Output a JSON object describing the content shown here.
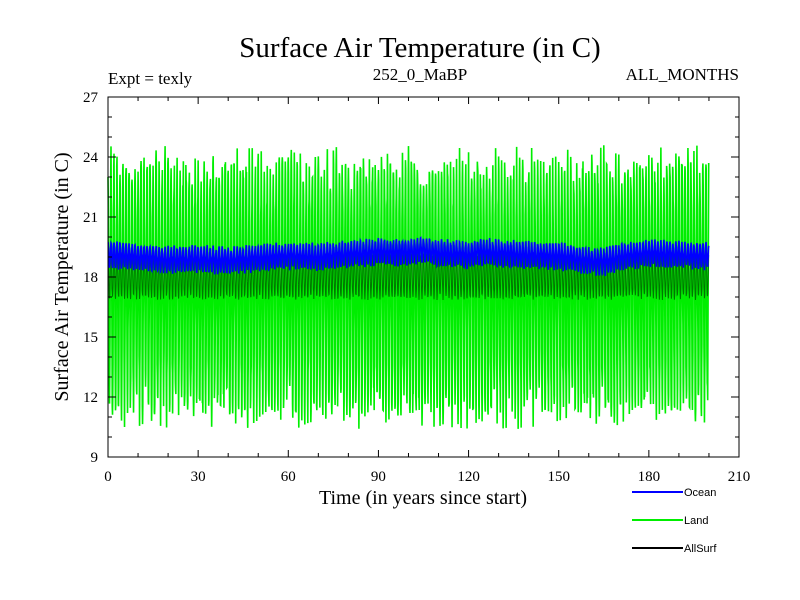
{
  "chart_data": {
    "type": "line",
    "title": "Surface Air Temperature (in C)",
    "expt_label": "Expt = texly",
    "run_label": "252_0_MaBP",
    "months_label": "ALL_MONTHS",
    "xlabel": "Time (in years since start)",
    "ylabel": "Surface Air Temperature (in C)",
    "xlim": [
      0,
      210
    ],
    "ylim": [
      9,
      27
    ],
    "xticks": [
      0,
      30,
      60,
      90,
      120,
      150,
      180,
      210
    ],
    "yticks": [
      9,
      12,
      15,
      18,
      21,
      24,
      27
    ],
    "grid": false,
    "legend_position": "bottom-right",
    "data_x_range": [
      0,
      199.9
    ],
    "samples_per_year": 12,
    "series": [
      {
        "name": "Ocean",
        "color": "#0000ff",
        "seasonal_min": 18.4,
        "seasonal_max": 19.6,
        "slow_variation": [
          [
            0,
            0.1
          ],
          [
            10,
            0.0
          ],
          [
            20,
            -0.15
          ],
          [
            30,
            -0.1
          ],
          [
            40,
            -0.2
          ],
          [
            50,
            -0.05
          ],
          [
            60,
            0.05
          ],
          [
            70,
            0.0
          ],
          [
            80,
            0.15
          ],
          [
            90,
            0.25
          ],
          [
            100,
            0.2
          ],
          [
            105,
            0.35
          ],
          [
            110,
            0.2
          ],
          [
            120,
            0.1
          ],
          [
            125,
            0.25
          ],
          [
            130,
            0.2
          ],
          [
            140,
            0.1
          ],
          [
            150,
            0.05
          ],
          [
            160,
            -0.2
          ],
          [
            165,
            -0.25
          ],
          [
            170,
            0.0
          ],
          [
            180,
            0.2
          ],
          [
            190,
            0.1
          ],
          [
            200,
            0.05
          ]
        ]
      },
      {
        "name": "Land",
        "color": "#00ee00",
        "seasonal_min": 11.5,
        "seasonal_max": 23.5,
        "extreme_min": 9.9,
        "extreme_max": 24.9
      },
      {
        "name": "AllSurf",
        "color": "#000000",
        "seasonal_min": 17.0,
        "seasonal_max": 19.2
      }
    ]
  }
}
